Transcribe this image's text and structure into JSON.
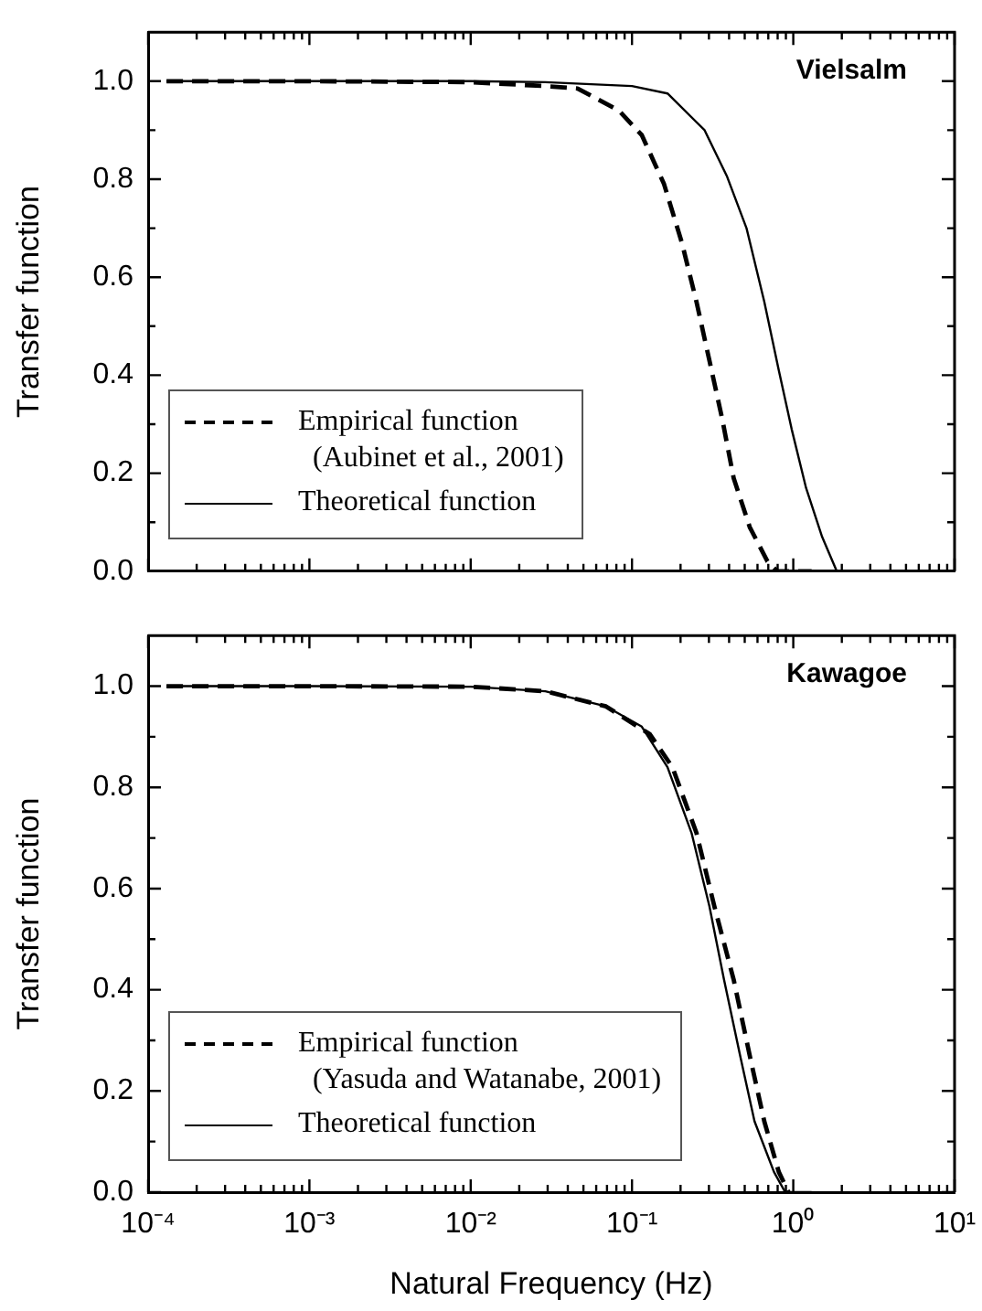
{
  "chart_data": [
    {
      "type": "line",
      "ylabel": "Transfer function",
      "annotations": [
        "Vielsalm"
      ],
      "log": "x",
      "legend": "bottom left",
      "tick_labels": "y",
      "xlim": [
        0.0001,
        10
      ],
      "xticks": [
        {
          "value": 0.0001,
          "label": null
        },
        {
          "value": 0.0002,
          "label": null
        },
        {
          "value": 0.0003,
          "label": null
        },
        {
          "value": 0.0004,
          "label": null
        },
        {
          "value": 0.0005,
          "label": null
        },
        {
          "value": 0.0006,
          "label": null
        },
        {
          "value": 0.0007,
          "label": null
        },
        {
          "value": 0.0008,
          "label": null
        },
        {
          "value": 0.0009,
          "label": null
        },
        {
          "value": 0.001,
          "label": null
        },
        {
          "value": 0.002,
          "label": null
        },
        {
          "value": 0.003,
          "label": null
        },
        {
          "value": 0.004,
          "label": null
        },
        {
          "value": 0.005,
          "label": null
        },
        {
          "value": 0.006,
          "label": null
        },
        {
          "value": 0.007,
          "label": null
        },
        {
          "value": 0.008,
          "label": null
        },
        {
          "value": 0.009,
          "label": null
        },
        {
          "value": 0.01,
          "label": null
        },
        {
          "value": 0.02,
          "label": null
        },
        {
          "value": 0.03,
          "label": null
        },
        {
          "value": 0.04,
          "label": null
        },
        {
          "value": 0.05,
          "label": null
        },
        {
          "value": 0.06,
          "label": null
        },
        {
          "value": 0.07,
          "label": null
        },
        {
          "value": 0.08,
          "label": null
        },
        {
          "value": 0.09,
          "label": null
        },
        {
          "value": 0.1,
          "label": null
        },
        {
          "value": 0.2,
          "label": null
        },
        {
          "value": 0.3,
          "label": null
        },
        {
          "value": 0.4,
          "label": null
        },
        {
          "value": 0.5,
          "label": null
        },
        {
          "value": 0.6,
          "label": null
        },
        {
          "value": 0.7,
          "label": null
        },
        {
          "value": 0.8,
          "label": null
        },
        {
          "value": 0.9,
          "label": null
        },
        {
          "value": 1,
          "label": null
        },
        {
          "value": 2,
          "label": null
        },
        {
          "value": 3,
          "label": null
        },
        {
          "value": 4,
          "label": null
        },
        {
          "value": 5,
          "label": null
        },
        {
          "value": 6,
          "label": null
        },
        {
          "value": 7,
          "label": null
        },
        {
          "value": 8,
          "label": null
        },
        {
          "value": 9,
          "label": null
        },
        {
          "value": 10,
          "label": null
        }
      ],
      "ylim": [
        0,
        1.1
      ],
      "yticks": [
        {
          "value": 0,
          "label": "0.0"
        },
        {
          "value": 0.1,
          "label": null
        },
        {
          "value": 0.2,
          "label": "0.2"
        },
        {
          "value": 0.3,
          "label": null
        },
        {
          "value": 0.4,
          "label": "0.4"
        },
        {
          "value": 0.5,
          "label": null
        },
        {
          "value": 0.6,
          "label": "0.6"
        },
        {
          "value": 0.7,
          "label": null
        },
        {
          "value": 0.8,
          "label": "0.8"
        },
        {
          "value": 0.9,
          "label": null
        },
        {
          "value": 1,
          "label": "1.0"
        }
      ],
      "series": [
        {
          "name": "Empirical function\n(Aubinet et al., 2001)",
          "color": "#000000",
          "line_style": "dashed",
          "x": [
            0.00013,
            0.001,
            0.01,
            0.029,
            0.046,
            0.083,
            0.115,
            0.158,
            0.204,
            0.251,
            0.302,
            0.363,
            0.427,
            0.537,
            0.692,
            0.794,
            1.3
          ],
          "values": [
            1,
            1,
            0.998,
            0.99,
            0.985,
            0.94,
            0.89,
            0.79,
            0.67,
            0.55,
            0.43,
            0.31,
            0.19,
            0.09,
            0.02,
            0,
            0
          ]
        },
        {
          "name": "Theoretical function",
          "color": "#000000",
          "line_style": "solid",
          "x": [
            0.00013,
            0.001,
            0.01,
            0.029,
            0.1,
            0.166,
            0.282,
            0.389,
            0.513,
            0.661,
            0.813,
            0.977,
            1.2,
            1.51,
            1.86
          ],
          "values": [
            1,
            1,
            1,
            0.998,
            0.99,
            0.975,
            0.9,
            0.805,
            0.7,
            0.55,
            0.41,
            0.29,
            0.17,
            0.07,
            0
          ]
        }
      ]
    },
    {
      "type": "line",
      "ylabel": "Transfer function",
      "xlabel": "Natural Frequency (Hz)",
      "annotations": [
        "Kawagoe"
      ],
      "log": "x",
      "legend": "bottom left",
      "xlim": [
        0.0001,
        10
      ],
      "xticks": [
        {
          "value": 0.0001,
          "label": "10⁻⁴"
        },
        {
          "value": 0.0002,
          "label": null
        },
        {
          "value": 0.0003,
          "label": null
        },
        {
          "value": 0.0004,
          "label": null
        },
        {
          "value": 0.0005,
          "label": null
        },
        {
          "value": 0.0006,
          "label": null
        },
        {
          "value": 0.0007,
          "label": null
        },
        {
          "value": 0.0008,
          "label": null
        },
        {
          "value": 0.0009,
          "label": null
        },
        {
          "value": 0.001,
          "label": "10⁻³"
        },
        {
          "value": 0.002,
          "label": null
        },
        {
          "value": 0.003,
          "label": null
        },
        {
          "value": 0.004,
          "label": null
        },
        {
          "value": 0.005,
          "label": null
        },
        {
          "value": 0.006,
          "label": null
        },
        {
          "value": 0.007,
          "label": null
        },
        {
          "value": 0.008,
          "label": null
        },
        {
          "value": 0.009,
          "label": null
        },
        {
          "value": 0.01,
          "label": "10⁻²"
        },
        {
          "value": 0.02,
          "label": null
        },
        {
          "value": 0.03,
          "label": null
        },
        {
          "value": 0.04,
          "label": null
        },
        {
          "value": 0.05,
          "label": null
        },
        {
          "value": 0.06,
          "label": null
        },
        {
          "value": 0.07,
          "label": null
        },
        {
          "value": 0.08,
          "label": null
        },
        {
          "value": 0.09,
          "label": null
        },
        {
          "value": 0.1,
          "label": "10⁻¹"
        },
        {
          "value": 0.2,
          "label": null
        },
        {
          "value": 0.3,
          "label": null
        },
        {
          "value": 0.4,
          "label": null
        },
        {
          "value": 0.5,
          "label": null
        },
        {
          "value": 0.6,
          "label": null
        },
        {
          "value": 0.7,
          "label": null
        },
        {
          "value": 0.8,
          "label": null
        },
        {
          "value": 0.9,
          "label": null
        },
        {
          "value": 1,
          "label": "10⁰"
        },
        {
          "value": 2,
          "label": null
        },
        {
          "value": 3,
          "label": null
        },
        {
          "value": 4,
          "label": null
        },
        {
          "value": 5,
          "label": null
        },
        {
          "value": 6,
          "label": null
        },
        {
          "value": 7,
          "label": null
        },
        {
          "value": 8,
          "label": null
        },
        {
          "value": 9,
          "label": null
        },
        {
          "value": 10,
          "label": "10¹"
        }
      ],
      "ylim": [
        0,
        1.1
      ],
      "yticks": [
        {
          "value": 0,
          "label": "0.0"
        },
        {
          "value": 0.1,
          "label": null
        },
        {
          "value": 0.2,
          "label": "0.2"
        },
        {
          "value": 0.3,
          "label": null
        },
        {
          "value": 0.4,
          "label": "0.4"
        },
        {
          "value": 0.5,
          "label": null
        },
        {
          "value": 0.6,
          "label": "0.6"
        },
        {
          "value": 0.7,
          "label": null
        },
        {
          "value": 0.8,
          "label": "0.8"
        },
        {
          "value": 0.9,
          "label": null
        },
        {
          "value": 1,
          "label": "1.0"
        }
      ],
      "series": [
        {
          "name": "Empirical function\n(Yasuda and Watanabe, 2001)",
          "color": "#000000",
          "line_style": "dashed",
          "x": [
            0.00013,
            0.001,
            0.01,
            0.029,
            0.069,
            0.129,
            0.178,
            0.251,
            0.324,
            0.427,
            0.537,
            0.661,
            0.813,
            0.933
          ],
          "values": [
            1,
            1,
            0.999,
            0.99,
            0.96,
            0.905,
            0.84,
            0.71,
            0.565,
            0.42,
            0.27,
            0.14,
            0.04,
            0
          ]
        },
        {
          "name": "Theoretical function",
          "color": "#000000",
          "line_style": "solid",
          "x": [
            0.00013,
            0.001,
            0.01,
            0.029,
            0.069,
            0.115,
            0.166,
            0.234,
            0.302,
            0.372,
            0.468,
            0.575,
            0.759,
            0.891,
            1.3
          ],
          "values": [
            1,
            1,
            0.999,
            0.99,
            0.96,
            0.92,
            0.84,
            0.71,
            0.565,
            0.42,
            0.27,
            0.14,
            0.04,
            0,
            0
          ]
        }
      ]
    }
  ]
}
